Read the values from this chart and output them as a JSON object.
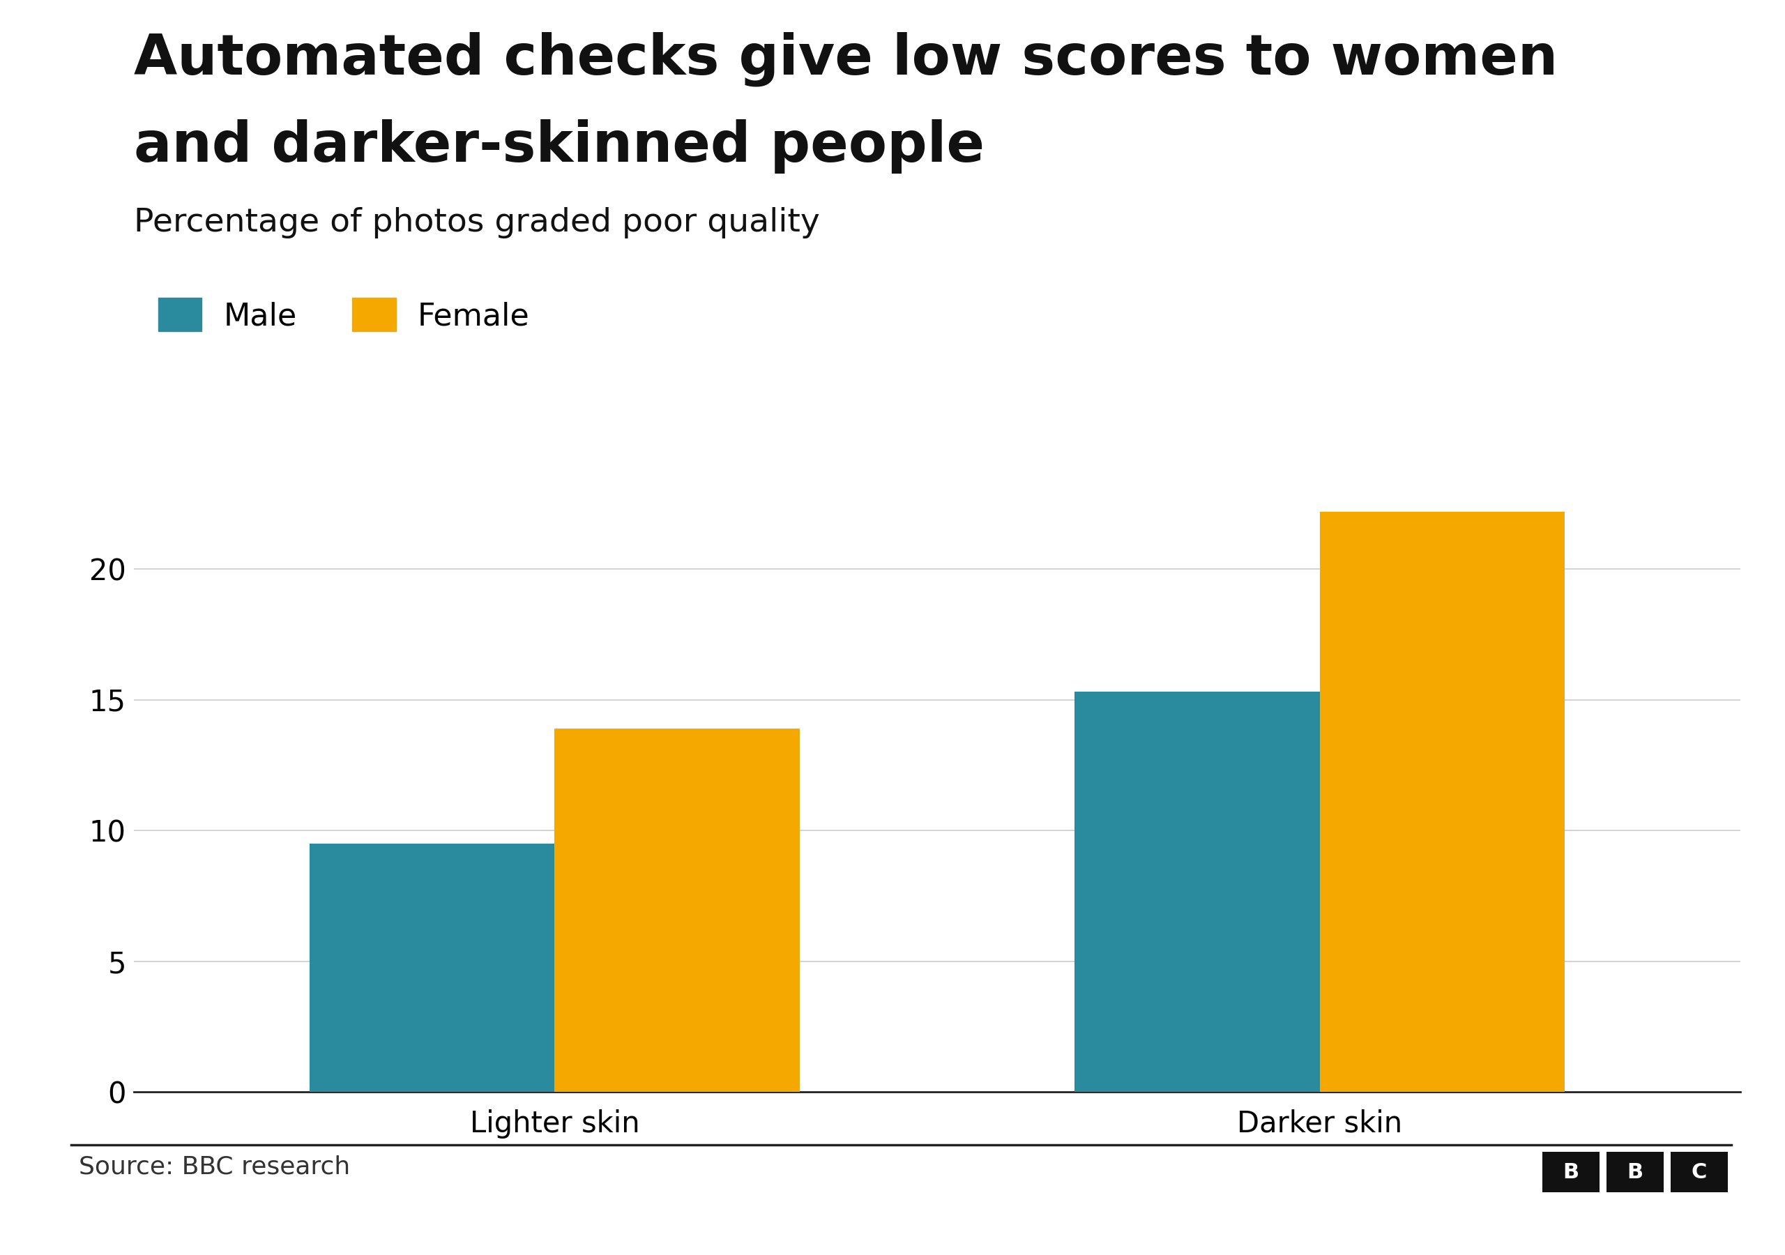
{
  "title_line1": "Automated checks give low scores to women",
  "title_line2": "and darker-skinned people",
  "subtitle": "Percentage of photos graded poor quality",
  "categories": [
    "Lighter skin",
    "Darker skin"
  ],
  "male_values": [
    9.5,
    15.3
  ],
  "female_values": [
    13.9,
    22.2
  ],
  "male_color": "#2a8a9e",
  "female_color": "#f5a800",
  "male_label": "Male",
  "female_label": "Female",
  "yticks": [
    0,
    5,
    10,
    15,
    20
  ],
  "ylim": [
    0,
    24
  ],
  "source_text": "Source: BBC research",
  "background_color": "#ffffff",
  "title_fontsize": 58,
  "subtitle_fontsize": 34,
  "legend_fontsize": 32,
  "tick_fontsize": 30,
  "source_fontsize": 26,
  "bar_width": 0.32
}
